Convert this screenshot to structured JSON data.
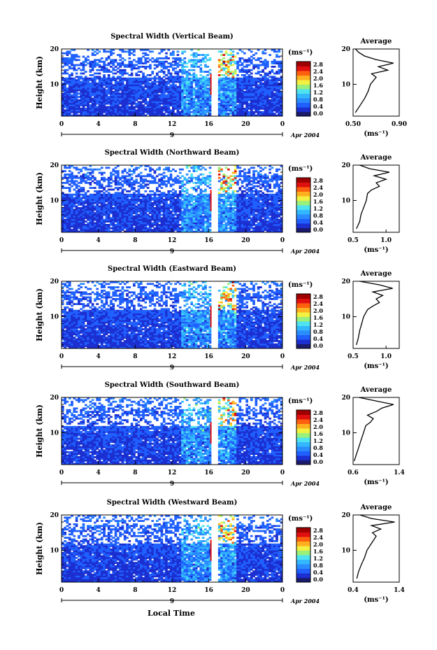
{
  "figure": {
    "xlabel": "Local Time",
    "date_label": "Apr 2004",
    "day_label": "9",
    "x_ticks": [
      "0",
      "4",
      "8",
      "12",
      "16",
      "20",
      "0"
    ],
    "ylabel": "Height (km)",
    "y_ticks": [
      "10",
      "20"
    ],
    "colorbar_unit": "(ms⁻¹)",
    "colorbar_ticks": [
      "0.0",
      "0.4",
      "0.8",
      "1.2",
      "1.6",
      "2.0",
      "2.4",
      "2.8"
    ],
    "avg_title": "Average",
    "avg_unit": "(ms⁻¹)",
    "colors": {
      "scale": [
        "#1b1b6e",
        "#1c2fd0",
        "#2060ff",
        "#2a8cff",
        "#33b8ff",
        "#4fe3f0",
        "#9af07a",
        "#f2f040",
        "#ffb020",
        "#ff6010",
        "#e01010",
        "#a00000"
      ]
    }
  },
  "chart_data": [
    {
      "type": "heatmap",
      "title": "Spectral Width (Vertical Beam)",
      "x_range": [
        0,
        24
      ],
      "y_range": [
        1,
        20
      ],
      "color_range": [
        0.0,
        3.0
      ],
      "gap_hours": [
        16.3,
        17.0
      ],
      "average_profile": {
        "xlim": [
          0.5,
          0.9
        ],
        "x_ticks": [
          "0.50",
          "0.90"
        ],
        "height_km": [
          2,
          4,
          6,
          8,
          10,
          12,
          13,
          14,
          15,
          16,
          17,
          18,
          19,
          20
        ],
        "width": [
          0.52,
          0.56,
          0.6,
          0.63,
          0.65,
          0.7,
          0.66,
          0.8,
          0.72,
          0.85,
          0.7,
          0.6,
          0.55,
          0.52
        ]
      }
    },
    {
      "type": "heatmap",
      "title": "Spectral Width (Northward Beam)",
      "x_range": [
        0,
        24
      ],
      "y_range": [
        1,
        20
      ],
      "color_range": [
        0.0,
        3.0
      ],
      "gap_hours": [
        16.3,
        17.0
      ],
      "average_profile": {
        "xlim": [
          0.5,
          1.2
        ],
        "x_ticks": [
          "0.5",
          "1.0"
        ],
        "height_km": [
          2,
          4,
          6,
          8,
          10,
          12,
          13,
          14,
          15,
          16,
          17,
          18,
          19,
          20
        ],
        "width": [
          0.55,
          0.6,
          0.62,
          0.66,
          0.7,
          0.72,
          0.78,
          0.9,
          0.85,
          1.0,
          0.82,
          1.05,
          0.75,
          0.6
        ]
      }
    },
    {
      "type": "heatmap",
      "title": "Spectral Width (Eastward Beam)",
      "x_range": [
        0,
        24
      ],
      "y_range": [
        1,
        20
      ],
      "color_range": [
        0.0,
        3.0
      ],
      "gap_hours": [
        16.3,
        17.0
      ],
      "average_profile": {
        "xlim": [
          0.5,
          1.2
        ],
        "x_ticks": [
          "0.5",
          "1.0"
        ],
        "height_km": [
          2,
          4,
          6,
          8,
          10,
          12,
          13,
          14,
          15,
          16,
          17,
          18,
          19,
          20
        ],
        "width": [
          0.55,
          0.58,
          0.6,
          0.63,
          0.66,
          0.72,
          0.8,
          0.9,
          0.85,
          0.95,
          0.8,
          1.1,
          0.9,
          0.6
        ]
      }
    },
    {
      "type": "heatmap",
      "title": "Spectral Width (Southward Beam)",
      "x_range": [
        0,
        24
      ],
      "y_range": [
        1,
        20
      ],
      "color_range": [
        0.0,
        3.0
      ],
      "gap_hours": [
        16.3,
        17.0
      ],
      "average_profile": {
        "xlim": [
          0.6,
          1.4
        ],
        "x_ticks": [
          "0.6",
          "1.4"
        ],
        "height_km": [
          2,
          4,
          6,
          8,
          10,
          12,
          13,
          14,
          15,
          16,
          17,
          18,
          19,
          20
        ],
        "width": [
          0.62,
          0.66,
          0.7,
          0.74,
          0.78,
          0.82,
          0.9,
          0.95,
          0.85,
          1.0,
          1.1,
          1.3,
          1.0,
          0.7
        ]
      }
    },
    {
      "type": "heatmap",
      "title": "Spectral Width (Westward Beam)",
      "x_range": [
        0,
        24
      ],
      "y_range": [
        1,
        20
      ],
      "color_range": [
        0.0,
        3.0
      ],
      "gap_hours": [
        16.3,
        17.0
      ],
      "average_profile": {
        "xlim": [
          0.4,
          1.4
        ],
        "x_ticks": [
          "0.4",
          "1.4"
        ],
        "height_km": [
          2,
          4,
          6,
          8,
          10,
          12,
          13,
          14,
          15,
          16,
          17,
          18,
          19,
          20
        ],
        "width": [
          0.48,
          0.52,
          0.58,
          0.65,
          0.7,
          0.8,
          0.85,
          0.9,
          0.82,
          1.0,
          0.8,
          1.3,
          0.8,
          0.55
        ]
      }
    }
  ]
}
